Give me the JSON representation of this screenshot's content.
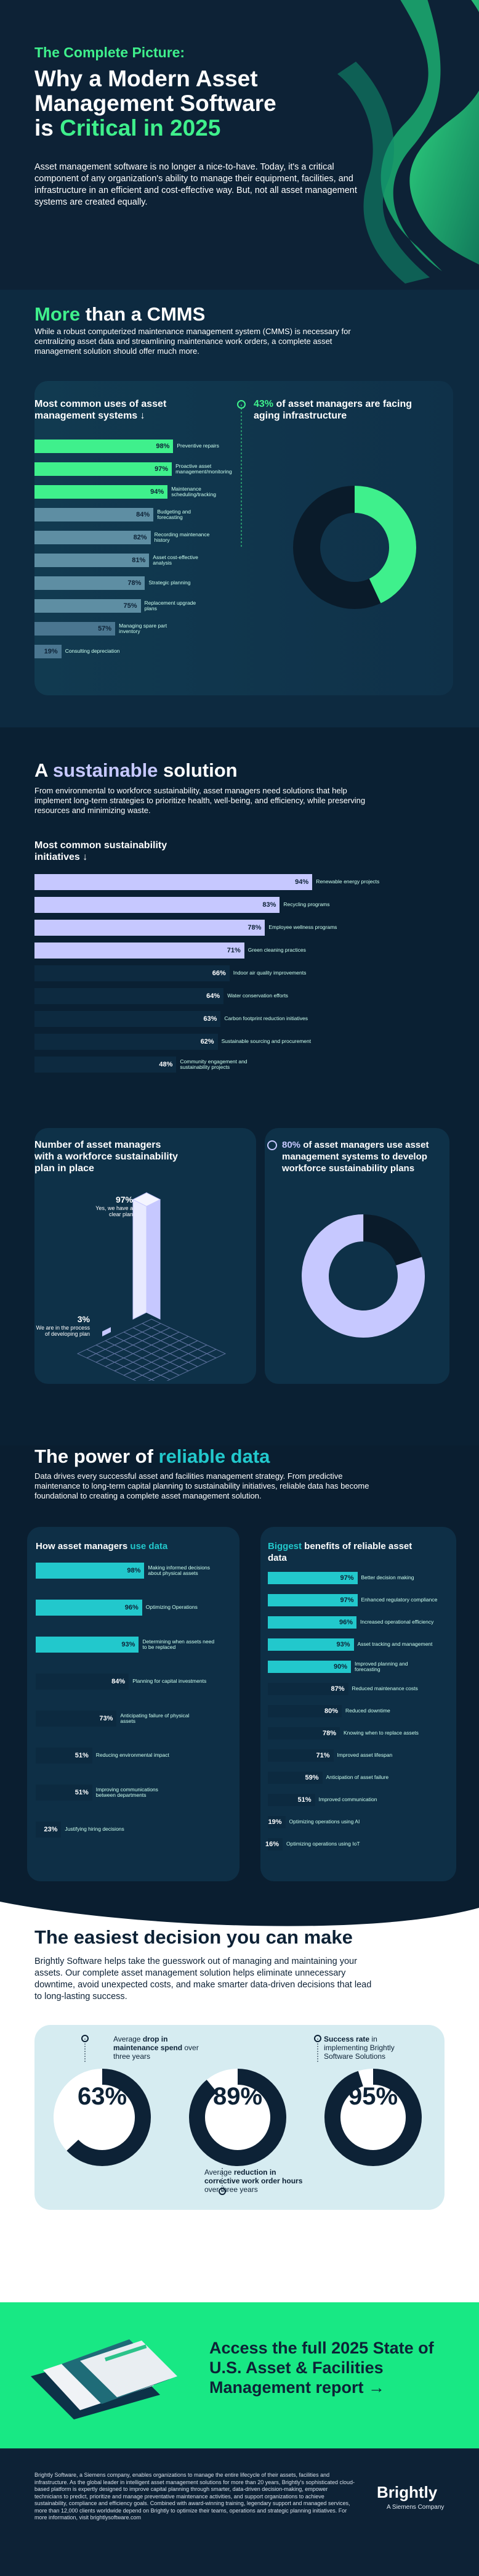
{
  "hero": {
    "kicker": "The Complete Picture:",
    "title_line1": "Why a Modern Asset",
    "title_line2": "Management Software",
    "title_line3_plain": "is ",
    "title_line3_accent": "Critical in 2025",
    "body": "Asset management software is no longer a nice-to-have. Today, it's a critical component of any organization's ability to manage their equipment, facilities, and infrastructure in an efficient and cost-effective way. But, not all asset management systems are created equally."
  },
  "cmms": {
    "title_accent": "More",
    "title_rest": " than a CMMS",
    "intro": "While a robust computerized maintenance management system (CMMS) is necessary for centralizing asset data and streamlining maintenance work orders, a complete asset management solution should offer much more.",
    "chart_title": "Most common uses of asset management systems ↓",
    "donut_title_pct": "43%",
    "donut_title_rest": " of asset managers are facing aging infrastructure"
  },
  "sust": {
    "title_plain1": "A ",
    "title_accent": "sustainable",
    "title_plain2": " solution",
    "intro": "From environmental to workforce sustainability, asset managers need solutions that help implement long-term strategies to prioritize health, well-being, and efficiency, while preserving resources and minimizing waste.",
    "chart_title": "Most common sustainability initiatives ↓",
    "plan_title": "Number of asset managers with a workforce sustainability plan in place",
    "plan_yes_pct": "97%",
    "plan_yes_label": "Yes, we have a clear plan",
    "plan_no_pct": "3%",
    "plan_no_label": "We are in the process of developing plan",
    "donut2_pct": "80%",
    "donut2_rest": " of asset managers use asset management systems to develop workforce sustainability plans"
  },
  "rel": {
    "title_plain": "The power of ",
    "title_accent": "reliable data",
    "intro": "Data drives every successful asset and facilities management strategy. From predictive maintenance to long-term capital planning to sustainability initiatives, reliable data has become foundational to creating a complete asset management solution.",
    "left_title_plain": "How asset managers ",
    "left_title_accent": "use data",
    "right_title_accent": "Biggest",
    "right_title_rest": " benefits of reliable asset data"
  },
  "dec": {
    "title": "The easiest decision you can make",
    "intro": "Brightly Software helps take the guesswork out of managing and maintaining your assets. Our complete asset management solution helps eliminate unnecessary downtime, avoid unexpected costs, and make smarter data-driven decisions that lead to long-lasting success.",
    "stats": [
      {
        "value": "63%",
        "label_plain1": "Average ",
        "label_bold": "drop in maintenance spend",
        "label_plain2": " over three years"
      },
      {
        "value": "89%",
        "label_plain1": "Average ",
        "label_bold": "reduction in corrective work order hours",
        "label_plain2": " over three years"
      },
      {
        "value": "95%",
        "label_plain1": "",
        "label_bold": "Success rate",
        "label_plain2": " in implementing Brightly Software Solutions"
      }
    ]
  },
  "cta": {
    "text": "Access the full 2025 State of U.S. Asset & Facilities Management report →"
  },
  "footer": {
    "text": "Brightly Software, a Siemens company, enables organizations to manage the entire lifecycle of their assets, facilities and infrastructure. As the global leader in intelligent asset management solutions for more than 20 years, Brightly's sophisticated cloud-based platform is expertly designed to improve capital planning through smarter, data-driven decision-making, empower technicians to predict, prioritize and manage preventative maintenance activities, and support organizations to achieve sustainability, compliance and efficiency goals. Combined with award-winning training, legendary support and managed services, more than 12,000 clients worldwide depend on Brightly to optimize their teams, operations and strategic planning initiatives. For more information, visit brightlysoftware.com",
    "logo": "Brightly",
    "logo_sub": "A Siemens Company"
  },
  "colors": {
    "navy": "#0d2236",
    "green": "#3ff08c",
    "teal": "#22c8cc",
    "lavender": "#c6c8ff"
  },
  "chart_data": [
    {
      "type": "bar",
      "title": "Most common uses of asset management systems",
      "categories": [
        "Preventive repairs",
        "Proactive asset management/monitoring",
        "Maintenance scheduling/tracking",
        "Budgeting and forecasting",
        "Recording maintenance history",
        "Asset cost-effective analysis",
        "Strategic planning",
        "Replacement upgrade plans",
        "Managing spare part inventory",
        "Consulting depreciation"
      ],
      "values": [
        98,
        97,
        94,
        84,
        82,
        81,
        78,
        75,
        57,
        19
      ]
    },
    {
      "type": "pie",
      "title": "aging infrastructure",
      "values": [
        43,
        57
      ]
    },
    {
      "type": "bar",
      "title": "Most common sustainability initiatives",
      "categories": [
        "Renewable energy projects",
        "Recycling programs",
        "Employee wellness programs",
        "Green cleaning practices",
        "Indoor air quality improvements",
        "Water conservation efforts",
        "Carbon footprint reduction initiatives",
        "Sustainable sourcing and procurement",
        "Community engagement and sustainability projects"
      ],
      "values": [
        94,
        83,
        78,
        71,
        66,
        64,
        63,
        62,
        48
      ]
    },
    {
      "type": "bar",
      "title": "Number of asset managers with a workforce sustainability plan in place",
      "categories": [
        "Yes, we have a clear plan",
        "We are in the process of developing plan"
      ],
      "values": [
        97,
        3
      ]
    },
    {
      "type": "pie",
      "title": "workforce sustainability plans",
      "values": [
        80,
        20
      ]
    },
    {
      "type": "bar",
      "title": "How asset managers use data",
      "categories": [
        "Making informed decisions about physical assets",
        "Optimizing Operations",
        "Determining when assets need to be replaced",
        "Planning for capital investments",
        "Anticipating failure of physical assets",
        "Reducing environmental impact",
        "Improving communications between departments",
        "Justifying hiring decisions"
      ],
      "values": [
        98,
        96,
        93,
        84,
        73,
        51,
        51,
        23
      ]
    },
    {
      "type": "bar",
      "title": "Biggest benefits of reliable asset data",
      "categories": [
        "Better decision making",
        "Enhanced regulatory compliance",
        "Increased operational efficiency",
        "Asset tracking and management",
        "Improved planning and forecasting",
        "Reduced maintenance costs",
        "Reduced downtime",
        "Knowing when to replace assets",
        "Improved asset lifespan",
        "Anticipation of asset failure",
        "Improved communication",
        "Optimizing operations using AI",
        "Optimizing operations using IoT"
      ],
      "values": [
        97,
        97,
        96,
        93,
        90,
        87,
        80,
        78,
        71,
        59,
        51,
        19,
        16
      ]
    }
  ]
}
